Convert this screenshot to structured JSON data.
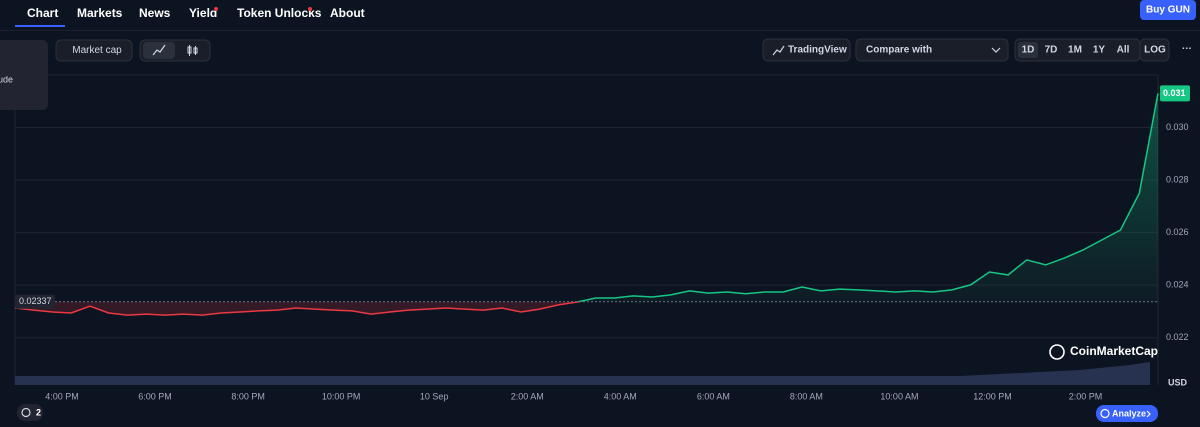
{
  "nav": {
    "tabs": [
      "Chart",
      "Markets",
      "News",
      "Yield",
      "Token Unlocks",
      "About"
    ]
  },
  "buy_button": "Buy GUN",
  "popup_text": "ude",
  "toolbar": {
    "market_cap": "Market cap",
    "trading_view": "TradingView",
    "compare": "Compare with",
    "ranges": [
      "1D",
      "7D",
      "1M",
      "1Y",
      "All"
    ],
    "log": "LOG",
    "more": "···"
  },
  "chart_data": {
    "type": "line",
    "time_labels": [
      "4:00 PM",
      "6:00 PM",
      "8:00 PM",
      "10:00 PM",
      "10 Sep",
      "2:00 AM",
      "4:00 AM",
      "6:00 AM",
      "8:00 AM",
      "10:00 AM",
      "12:00 PM",
      "2:00 PM"
    ],
    "values": [
      0.02313,
      0.02305,
      0.02298,
      0.02294,
      0.0232,
      0.02294,
      0.02286,
      0.0229,
      0.02286,
      0.0229,
      0.02286,
      0.02294,
      0.02298,
      0.02302,
      0.02305,
      0.02313,
      0.02309,
      0.02305,
      0.02302,
      0.0229,
      0.02298,
      0.02305,
      0.02309,
      0.02313,
      0.02309,
      0.02305,
      0.02313,
      0.02298,
      0.02309,
      0.02325,
      0.02336,
      0.02351,
      0.02351,
      0.02359,
      0.02355,
      0.02363,
      0.02378,
      0.0237,
      0.02374,
      0.02367,
      0.02374,
      0.02374,
      0.02393,
      0.02378,
      0.02385,
      0.02382,
      0.02378,
      0.02374,
      0.02378,
      0.02374,
      0.02382,
      0.02401,
      0.0245,
      0.02439,
      0.02496,
      0.02477,
      0.02503,
      0.02534,
      0.02572,
      0.0261,
      0.0275,
      0.0313
    ],
    "ylim": [
      0.0202,
      0.032
    ],
    "yticks": [
      0.022,
      0.024,
      0.026,
      0.028,
      {
        "value": 0.03,
        "label": "0.030"
      }
    ],
    "grid": true,
    "baseline": 0.02337,
    "current_price": 0.031,
    "up_color": "#16c784",
    "down_color": "#ea3943"
  },
  "watermark": "CoinMarketCap",
  "currency": "USD",
  "badge": "2",
  "analyze": "Analyze"
}
